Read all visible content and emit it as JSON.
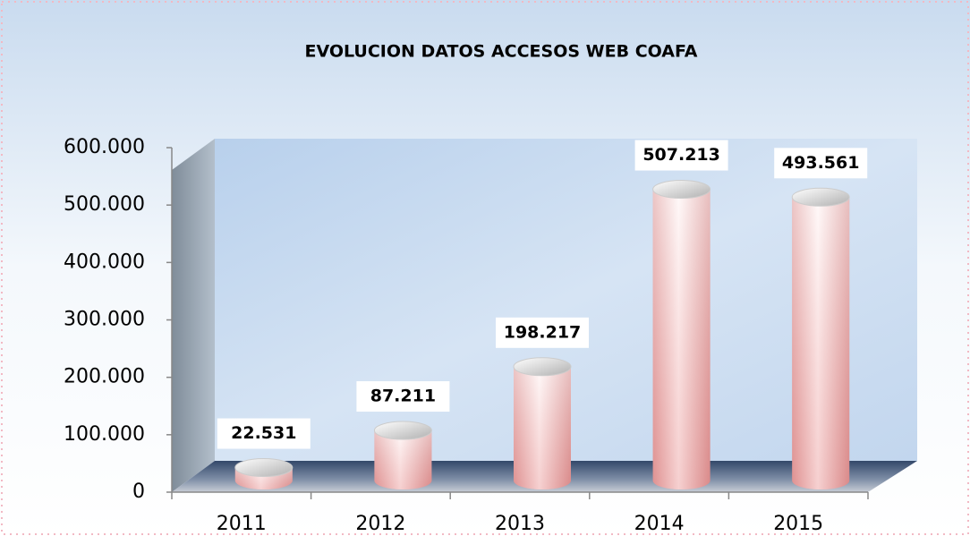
{
  "chart_data": {
    "type": "bar3d",
    "title": "EVOLUCION DATOS ACCESOS WEB COAFA",
    "categories": [
      "2011",
      "2012",
      "2013",
      "2014",
      "2015"
    ],
    "values": [
      22531,
      87211,
      198217,
      507213,
      493561
    ],
    "value_labels": [
      "22.531",
      "87.211",
      "198.217",
      "507.213",
      "493.561"
    ],
    "color": "#e8a4a4",
    "ylim": [
      0,
      600000
    ],
    "yticks": [
      0,
      {
        "value": 100000,
        "label": "100.000"
      },
      {
        "value": 200000,
        "label": "200.000"
      },
      {
        "value": 300000,
        "label": "300.000"
      },
      {
        "value": 400000,
        "label": "400.000"
      },
      {
        "value": 500000,
        "label": "500.000"
      },
      {
        "value": 600000,
        "label": "600.000"
      }
    ]
  }
}
